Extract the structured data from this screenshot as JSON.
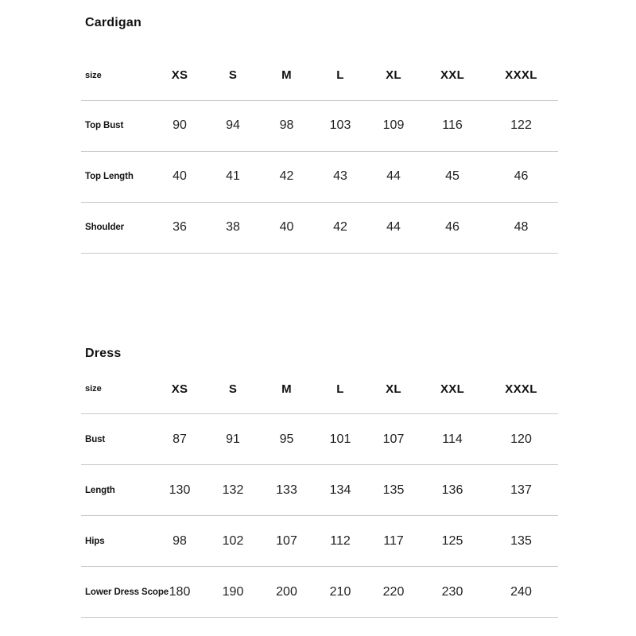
{
  "page": {
    "background_color": "#ffffff",
    "divider_color": "#c9c9c9",
    "text_color": "#1a1a1a"
  },
  "tables": [
    {
      "title": "Cardigan",
      "header_label": "size",
      "sizes": [
        "XS",
        "S",
        "M",
        "L",
        "XL",
        "XXL",
        "XXXL"
      ],
      "rows": [
        {
          "label": "Top Bust",
          "values": [
            90,
            94,
            98,
            103,
            109,
            116,
            122
          ]
        },
        {
          "label": "Top Length",
          "values": [
            40,
            41,
            42,
            43,
            44,
            45,
            46
          ]
        },
        {
          "label": "Shoulder",
          "values": [
            36,
            38,
            40,
            42,
            44,
            46,
            48
          ]
        }
      ]
    },
    {
      "title": "Dress",
      "header_label": "size",
      "sizes": [
        "XS",
        "S",
        "M",
        "L",
        "XL",
        "XXL",
        "XXXL"
      ],
      "rows": [
        {
          "label": "Bust",
          "values": [
            87,
            91,
            95,
            101,
            107,
            114,
            120
          ]
        },
        {
          "label": "Length",
          "values": [
            130,
            132,
            133,
            134,
            135,
            136,
            137
          ]
        },
        {
          "label": "Hips",
          "values": [
            98,
            102,
            107,
            112,
            117,
            125,
            135
          ]
        },
        {
          "label": "Lower Dress Scope",
          "values": [
            180,
            190,
            200,
            210,
            220,
            230,
            240
          ]
        }
      ]
    }
  ]
}
